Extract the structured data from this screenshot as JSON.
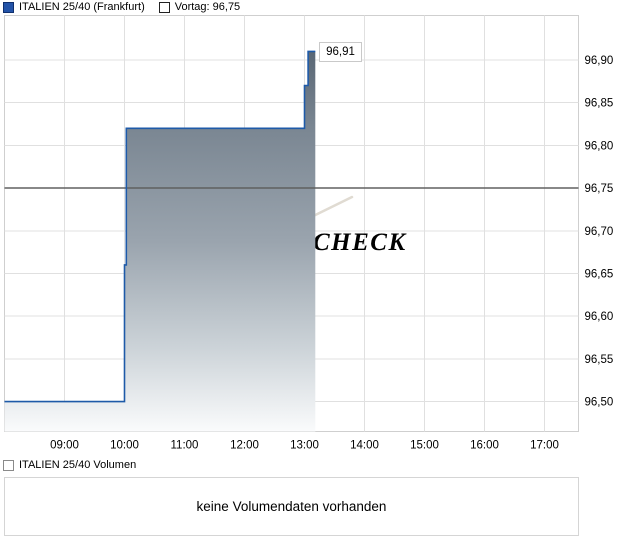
{
  "header": {
    "series_legend": "ITALIEN 25/40 (Frankfurt)",
    "vortag_legend": "Vortag: 96,75"
  },
  "watermark": {
    "text": "CHECK"
  },
  "volume_section": {
    "legend": "ITALIEN 25/40 Volumen",
    "message": "keine Volumendaten vorhanden"
  },
  "colors": {
    "line": "#1e5aa8",
    "legend_square": "#2353a8",
    "previous_close_line": "#606060",
    "grid": "#e0e0e0",
    "plot_border": "#cfcfcf",
    "watermark": "#e0dbd2",
    "area_gradient_top": "#5a6775",
    "area_gradient_upper": "#7a8692",
    "area_gradient_mid": "#9aa4ae",
    "area_gradient_lower": "#ccd3d8",
    "area_gradient_bottom": "#fafbfc"
  },
  "chart_data": {
    "type": "area",
    "title": "ITALIEN 25/40 (Frankfurt)",
    "step": true,
    "grid": true,
    "legend_position": "top-left",
    "x_tick_labels": [
      "09:00",
      "10:00",
      "11:00",
      "12:00",
      "13:00",
      "14:00",
      "15:00",
      "16:00",
      "17:00"
    ],
    "x_tick_hours": [
      9,
      10,
      11,
      12,
      13,
      14,
      15,
      16,
      17
    ],
    "y_tick_labels": [
      "96,90",
      "96,85",
      "96,80",
      "96,75",
      "96,70",
      "96,65",
      "96,60",
      "96,55",
      "96,50"
    ],
    "y_tick_values": [
      96.9,
      96.85,
      96.8,
      96.75,
      96.7,
      96.65,
      96.6,
      96.55,
      96.5
    ],
    "x_range_hours": [
      8.0,
      17.567
    ],
    "y_range": [
      96.465,
      96.952
    ],
    "previous_close": 96.75,
    "last_price": 96.91,
    "last_price_label": "96,91",
    "series": [
      {
        "name": "ITALIEN 25/40 (Frankfurt)",
        "points": [
          [
            8.0,
            96.5
          ],
          [
            10.0,
            96.5
          ],
          [
            10.0,
            96.66
          ],
          [
            10.03,
            96.66
          ],
          [
            10.03,
            96.82
          ],
          [
            13.0,
            96.82
          ],
          [
            13.0,
            96.87
          ],
          [
            13.06,
            96.87
          ],
          [
            13.06,
            96.91
          ],
          [
            13.18,
            96.91
          ]
        ]
      }
    ]
  }
}
